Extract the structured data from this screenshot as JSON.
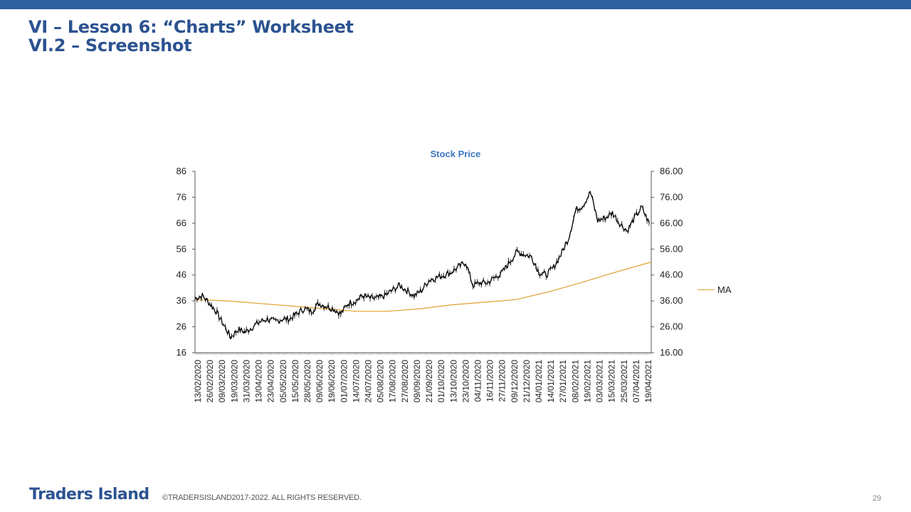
{
  "slide": {
    "title_line1": "VI – Lesson 6: “Charts” Worksheet",
    "title_line2": "VI.2 – Screenshot",
    "brand": "Traders Island",
    "copyright": "©TRADERSISLAND2017-2022. ALL RIGHTS RESERVED.",
    "page_number": "29"
  },
  "colors": {
    "accent": "#2e5fa0",
    "title": "#2c5391",
    "chart_title": "#3d78c0",
    "ma_line": "#e0a030",
    "price": "#000000"
  },
  "chart_data": {
    "type": "line",
    "title": "Stock Price",
    "x_type": "date",
    "x_date_format": "DD/MM/YYYY",
    "x_range": [
      "13/02/2020",
      "23/04/2021"
    ],
    "x_tick_labels": [
      "13/02/2020",
      "26/02/2020",
      "09/03/2020",
      "19/03/2020",
      "31/03/2020",
      "13/04/2020",
      "23/04/2020",
      "05/05/2020",
      "15/05/2020",
      "28/05/2020",
      "09/06/2020",
      "19/06/2020",
      "01/07/2020",
      "14/07/2020",
      "24/07/2020",
      "05/08/2020",
      "17/08/2020",
      "27/08/2020",
      "09/09/2020",
      "21/09/2020",
      "01/10/2020",
      "13/10/2020",
      "23/10/2020",
      "04/11/2020",
      "16/11/2020",
      "27/11/2020",
      "09/12/2020",
      "21/12/2020",
      "04/01/2021",
      "14/01/2021",
      "27/01/2021",
      "08/02/2021",
      "19/02/2021",
      "03/03/2021",
      "15/03/2021",
      "25/03/2021",
      "07/04/2021",
      "19/04/2021"
    ],
    "y_left": {
      "min": 16,
      "max": 86,
      "ticks": [
        "86",
        "76",
        "66",
        "56",
        "46",
        "36",
        "26",
        "16"
      ]
    },
    "y_right": {
      "min": 16,
      "max": 86,
      "ticks": [
        "86.00",
        "76.00",
        "66.00",
        "56.00",
        "46.00",
        "36.00",
        "26.00",
        "16.00"
      ]
    },
    "grid": false,
    "legend": {
      "placement": "right",
      "entries": [
        "MA"
      ]
    },
    "series": [
      {
        "kind": "price",
        "x": [
          "13/02/2020",
          "20/02/2020",
          "27/02/2020",
          "04/03/2020",
          "11/03/2020",
          "18/03/2020",
          "25/03/2020",
          "01/04/2020",
          "08/04/2020",
          "15/04/2020",
          "22/04/2020",
          "29/04/2020",
          "06/05/2020",
          "13/05/2020",
          "20/05/2020",
          "27/05/2020",
          "03/06/2020",
          "10/06/2020",
          "17/06/2020",
          "24/06/2020",
          "01/07/2020",
          "08/07/2020",
          "15/07/2020",
          "22/07/2020",
          "29/07/2020",
          "05/08/2020",
          "12/08/2020",
          "19/08/2020",
          "26/08/2020",
          "02/09/2020",
          "09/09/2020",
          "16/09/2020",
          "23/09/2020",
          "30/09/2020",
          "07/10/2020",
          "14/10/2020",
          "21/10/2020",
          "28/10/2020",
          "04/11/2020",
          "11/11/2020",
          "18/11/2020",
          "25/11/2020",
          "02/12/2020",
          "09/12/2020",
          "16/12/2020",
          "23/12/2020",
          "30/12/2020",
          "06/01/2021",
          "13/01/2021",
          "20/01/2021",
          "27/01/2021",
          "03/02/2021",
          "10/02/2021",
          "17/02/2021",
          "24/02/2021",
          "03/03/2021",
          "10/03/2021",
          "17/03/2021",
          "24/03/2021",
          "31/03/2021",
          "07/04/2021",
          "14/04/2021",
          "21/04/2021"
        ],
        "values": [
          37,
          38,
          35,
          32,
          27,
          22,
          25,
          24,
          26,
          28,
          29,
          28,
          29,
          29,
          31,
          33,
          32,
          35,
          34,
          33,
          31,
          35,
          36,
          38,
          37,
          37,
          38,
          40,
          42,
          40,
          38,
          40,
          44,
          45,
          46,
          47,
          49,
          51,
          42,
          43,
          43,
          45,
          47,
          51,
          55,
          54,
          53,
          47,
          46,
          49,
          54,
          60,
          71,
          73,
          78,
          67,
          68,
          70,
          66,
          63,
          68,
          72,
          66
        ]
      },
      {
        "name": "MA",
        "x": [
          "13/02/2020",
          "15/03/2020",
          "15/04/2020",
          "15/05/2020",
          "15/06/2020",
          "15/07/2020",
          "15/08/2020",
          "15/09/2020",
          "15/10/2020",
          "15/11/2020",
          "15/12/2020",
          "15/01/2021",
          "15/02/2021",
          "15/03/2021",
          "23/04/2021"
        ],
        "values": [
          36.5,
          36.0,
          35.0,
          34.0,
          33.0,
          32.0,
          32.0,
          33.0,
          34.5,
          35.5,
          36.5,
          39.5,
          43.0,
          46.5,
          51.0
        ]
      }
    ]
  }
}
